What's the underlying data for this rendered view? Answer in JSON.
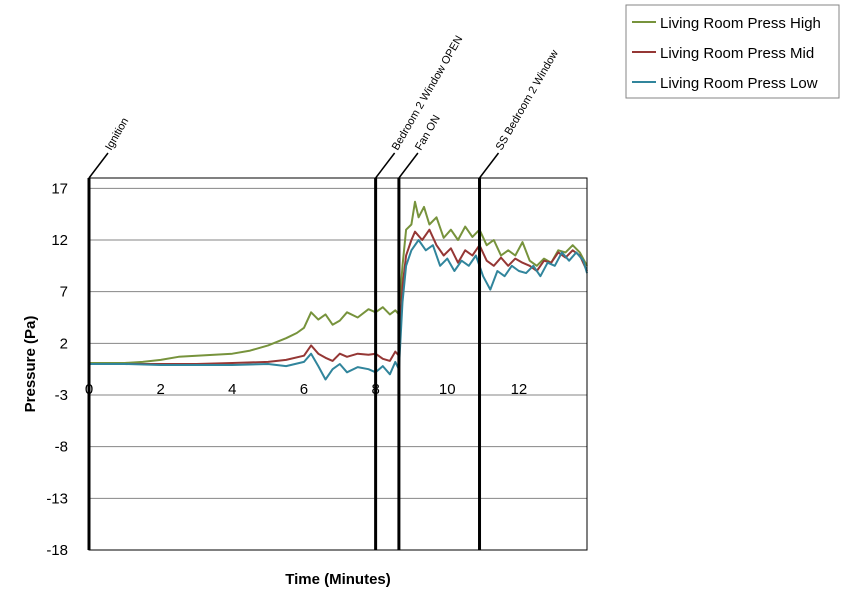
{
  "chart_data": {
    "type": "line",
    "title": "",
    "xlabel": "Time (Minutes)",
    "ylabel": "Pressure (Pa)",
    "xlim": [
      0,
      13.9
    ],
    "ylim": [
      -18,
      18
    ],
    "x_ticks": [
      0,
      2,
      4,
      6,
      8,
      10,
      12
    ],
    "y_ticks": [
      17,
      12,
      7,
      2,
      -3,
      -8,
      -13,
      -18
    ],
    "grid": "horizontal",
    "legend_position": "top-right",
    "events": [
      {
        "label": "Ignition",
        "x": 0
      },
      {
        "label": "Bedroom 2 Window OPEN",
        "x": 8.0
      },
      {
        "label": "Fan ON",
        "x": 8.65
      },
      {
        "label": "SS Bedroom 2 Window",
        "x": 10.9
      }
    ],
    "series": [
      {
        "name": "Living Room Press High",
        "color": "#77933C",
        "points": [
          [
            0,
            0.1
          ],
          [
            0.5,
            0.1
          ],
          [
            1,
            0.1
          ],
          [
            1.5,
            0.2
          ],
          [
            2,
            0.4
          ],
          [
            2.5,
            0.7
          ],
          [
            3,
            0.8
          ],
          [
            3.5,
            0.9
          ],
          [
            4,
            1.0
          ],
          [
            4.5,
            1.3
          ],
          [
            5,
            1.8
          ],
          [
            5.5,
            2.5
          ],
          [
            5.8,
            3.0
          ],
          [
            6,
            3.5
          ],
          [
            6.2,
            5.0
          ],
          [
            6.4,
            4.3
          ],
          [
            6.6,
            4.8
          ],
          [
            6.8,
            3.8
          ],
          [
            7,
            4.2
          ],
          [
            7.2,
            5.0
          ],
          [
            7.5,
            4.5
          ],
          [
            7.8,
            5.3
          ],
          [
            8,
            5.0
          ],
          [
            8.2,
            5.5
          ],
          [
            8.4,
            4.8
          ],
          [
            8.55,
            5.2
          ],
          [
            8.65,
            4.8
          ],
          [
            8.75,
            9.5
          ],
          [
            8.85,
            13.0
          ],
          [
            9.0,
            13.5
          ],
          [
            9.1,
            15.7
          ],
          [
            9.2,
            14.2
          ],
          [
            9.35,
            15.2
          ],
          [
            9.5,
            13.5
          ],
          [
            9.7,
            14.2
          ],
          [
            9.9,
            12.2
          ],
          [
            10.1,
            13.0
          ],
          [
            10.3,
            12.0
          ],
          [
            10.5,
            13.3
          ],
          [
            10.7,
            12.3
          ],
          [
            10.9,
            13.0
          ],
          [
            11.1,
            11.5
          ],
          [
            11.3,
            12.0
          ],
          [
            11.5,
            10.5
          ],
          [
            11.7,
            11.0
          ],
          [
            11.9,
            10.5
          ],
          [
            12.1,
            11.8
          ],
          [
            12.3,
            10.0
          ],
          [
            12.5,
            9.5
          ],
          [
            12.7,
            10.2
          ],
          [
            12.9,
            9.8
          ],
          [
            13.1,
            11.0
          ],
          [
            13.3,
            10.8
          ],
          [
            13.5,
            11.5
          ],
          [
            13.7,
            10.8
          ],
          [
            13.9,
            9.5
          ]
        ]
      },
      {
        "name": "Living Room Press Mid",
        "color": "#953735",
        "points": [
          [
            0,
            0.0
          ],
          [
            1,
            0.0
          ],
          [
            2,
            0.0
          ],
          [
            3,
            0.0
          ],
          [
            4,
            0.1
          ],
          [
            5,
            0.2
          ],
          [
            5.5,
            0.4
          ],
          [
            6,
            0.8
          ],
          [
            6.2,
            1.8
          ],
          [
            6.4,
            1.0
          ],
          [
            6.6,
            0.6
          ],
          [
            6.8,
            0.3
          ],
          [
            7,
            1.0
          ],
          [
            7.2,
            0.7
          ],
          [
            7.5,
            1.0
          ],
          [
            7.8,
            0.9
          ],
          [
            8,
            1.0
          ],
          [
            8.2,
            0.5
          ],
          [
            8.4,
            0.3
          ],
          [
            8.55,
            1.2
          ],
          [
            8.65,
            0.8
          ],
          [
            8.75,
            7.5
          ],
          [
            8.85,
            10.5
          ],
          [
            9.0,
            12.0
          ],
          [
            9.1,
            12.8
          ],
          [
            9.3,
            12.0
          ],
          [
            9.5,
            13.0
          ],
          [
            9.7,
            11.5
          ],
          [
            9.9,
            10.5
          ],
          [
            10.1,
            11.2
          ],
          [
            10.3,
            9.8
          ],
          [
            10.5,
            11.0
          ],
          [
            10.7,
            10.5
          ],
          [
            10.9,
            11.5
          ],
          [
            11.1,
            10.0
          ],
          [
            11.3,
            9.5
          ],
          [
            11.5,
            10.3
          ],
          [
            11.7,
            9.5
          ],
          [
            11.9,
            10.2
          ],
          [
            12.1,
            9.8
          ],
          [
            12.3,
            9.5
          ],
          [
            12.5,
            9.0
          ],
          [
            12.7,
            10.0
          ],
          [
            12.9,
            9.8
          ],
          [
            13.1,
            10.8
          ],
          [
            13.3,
            10.3
          ],
          [
            13.5,
            11.0
          ],
          [
            13.7,
            10.5
          ],
          [
            13.9,
            9.0
          ]
        ]
      },
      {
        "name": "Living Room Press Low",
        "color": "#31859C",
        "points": [
          [
            0,
            0.0
          ],
          [
            1,
            0.0
          ],
          [
            2,
            -0.1
          ],
          [
            3,
            -0.1
          ],
          [
            4,
            -0.1
          ],
          [
            5,
            0.0
          ],
          [
            5.5,
            -0.2
          ],
          [
            6,
            0.2
          ],
          [
            6.2,
            1.0
          ],
          [
            6.4,
            -0.2
          ],
          [
            6.6,
            -1.5
          ],
          [
            6.8,
            -0.5
          ],
          [
            7,
            0.0
          ],
          [
            7.2,
            -0.8
          ],
          [
            7.5,
            -0.3
          ],
          [
            7.8,
            -0.5
          ],
          [
            8,
            -0.8
          ],
          [
            8.2,
            -0.2
          ],
          [
            8.4,
            -1.0
          ],
          [
            8.55,
            0.2
          ],
          [
            8.65,
            -0.5
          ],
          [
            8.75,
            6.0
          ],
          [
            8.85,
            9.5
          ],
          [
            9.0,
            11.0
          ],
          [
            9.2,
            12.0
          ],
          [
            9.4,
            11.0
          ],
          [
            9.6,
            11.5
          ],
          [
            9.8,
            9.5
          ],
          [
            10.0,
            10.2
          ],
          [
            10.2,
            9.0
          ],
          [
            10.4,
            10.0
          ],
          [
            10.6,
            9.5
          ],
          [
            10.8,
            10.5
          ],
          [
            11.0,
            8.5
          ],
          [
            11.2,
            7.2
          ],
          [
            11.4,
            9.0
          ],
          [
            11.6,
            8.5
          ],
          [
            11.8,
            9.5
          ],
          [
            12.0,
            9.0
          ],
          [
            12.2,
            8.8
          ],
          [
            12.4,
            9.5
          ],
          [
            12.6,
            8.5
          ],
          [
            12.8,
            9.8
          ],
          [
            13.0,
            9.5
          ],
          [
            13.2,
            10.8
          ],
          [
            13.4,
            10.0
          ],
          [
            13.6,
            10.8
          ],
          [
            13.8,
            10.0
          ],
          [
            13.9,
            8.8
          ]
        ]
      }
    ]
  }
}
